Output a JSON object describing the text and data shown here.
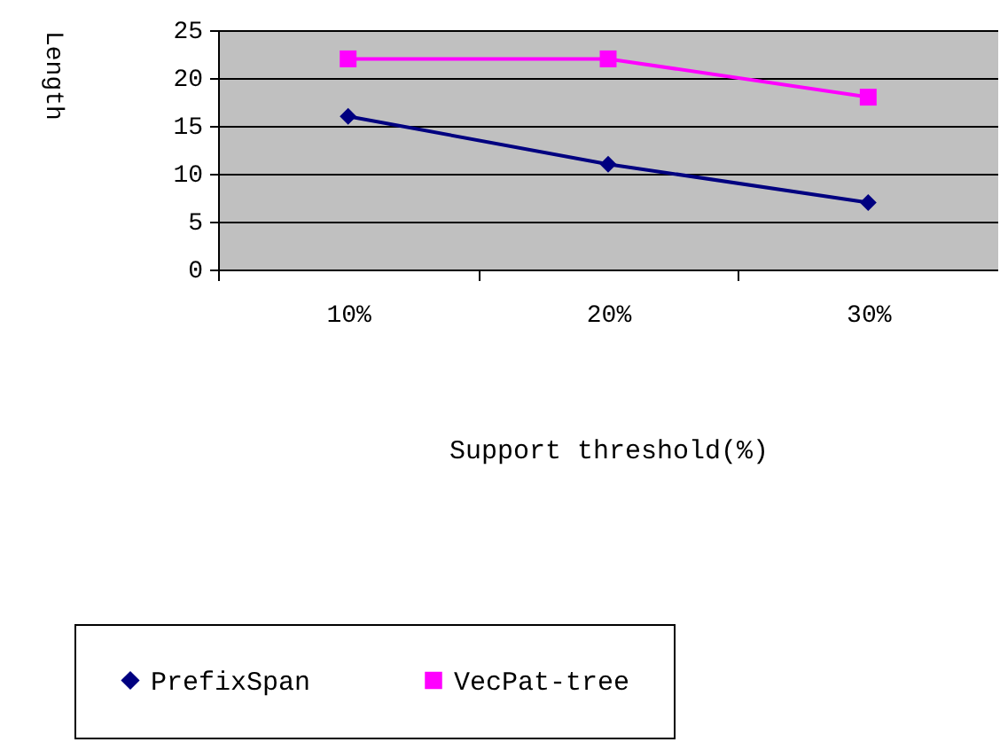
{
  "chart_data": {
    "type": "line",
    "xlabel": "Support threshold(%)",
    "ylabel": "Length",
    "categories": [
      "10%",
      "20%",
      "30%"
    ],
    "series": [
      {
        "name": "PrefixSpan",
        "color": "#000080",
        "marker": "diamond",
        "values": [
          16,
          11,
          7
        ]
      },
      {
        "name": "VecPat-tree",
        "color": "#ff00ff",
        "marker": "square",
        "values": [
          22,
          22,
          18
        ]
      }
    ],
    "ylim": [
      0,
      25
    ],
    "yticks": [
      0,
      5,
      10,
      15,
      20,
      25
    ],
    "grid": "y",
    "legend": "bottom"
  }
}
